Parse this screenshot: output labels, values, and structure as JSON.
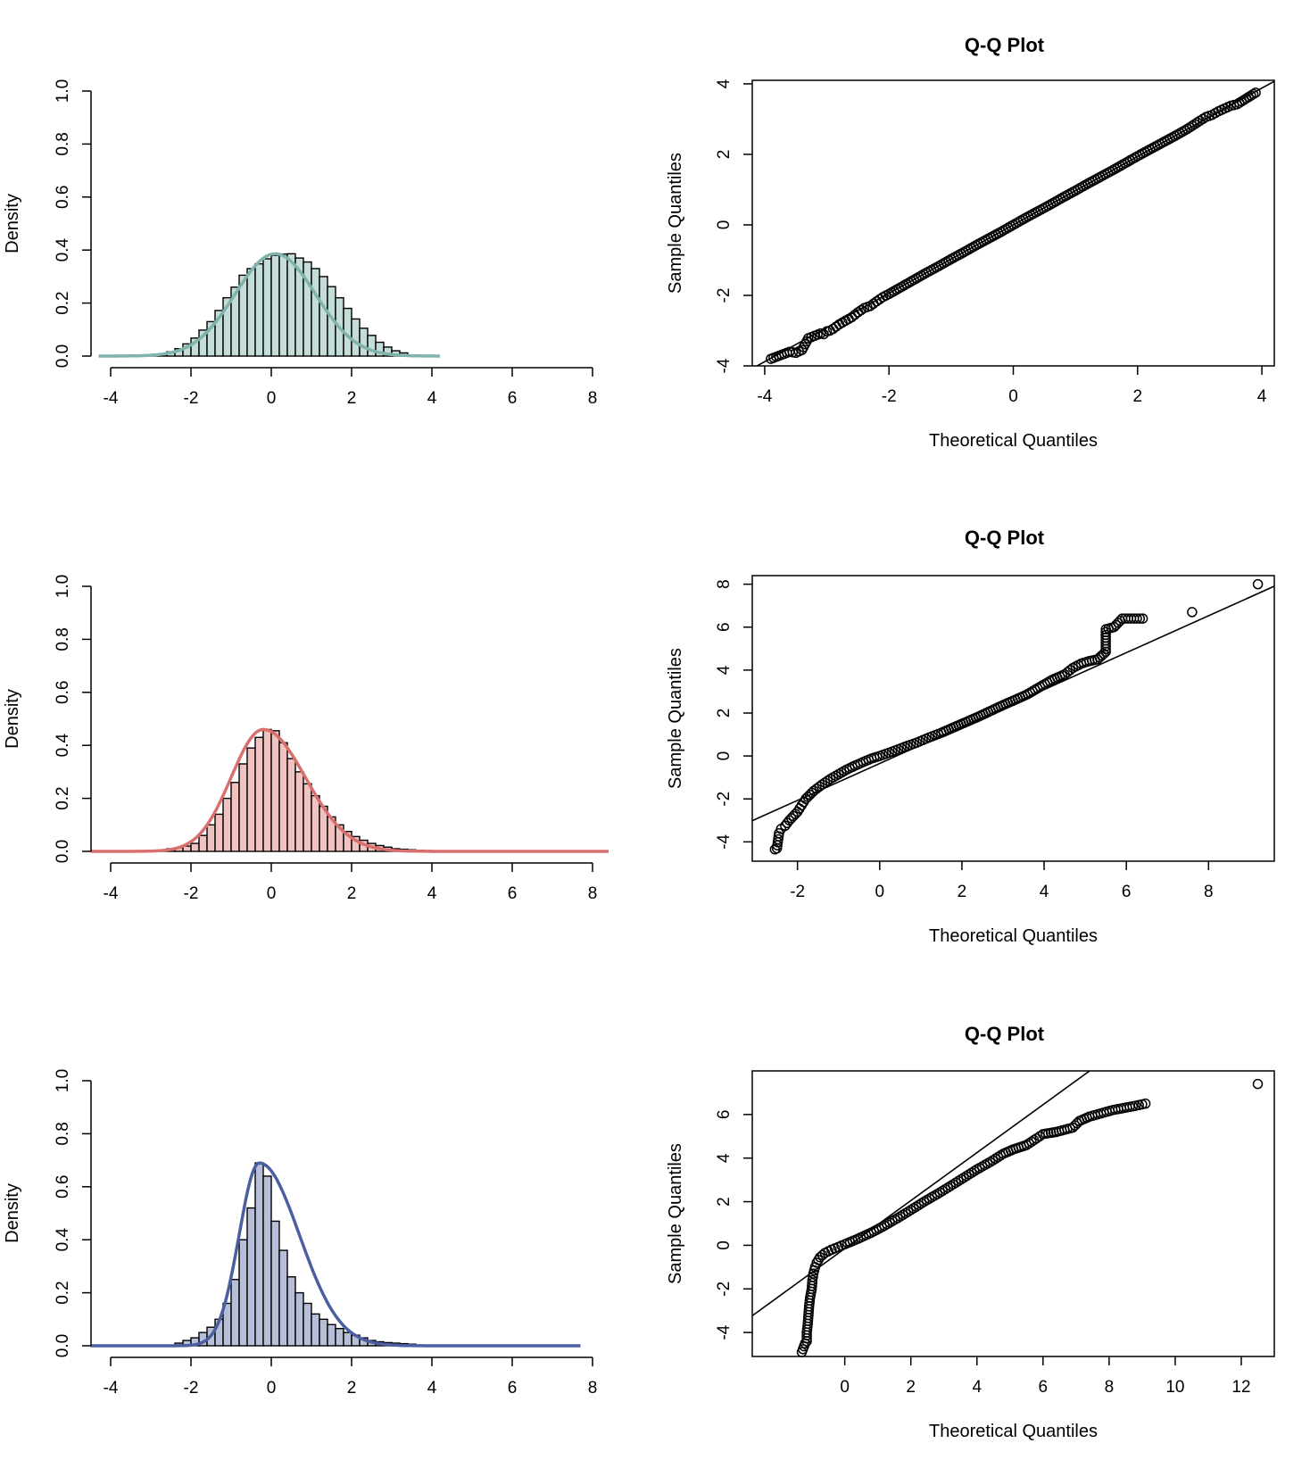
{
  "chart_data": [
    {
      "id": "hist1",
      "type": "bar",
      "title": "",
      "xlabel": "",
      "ylabel": "Density",
      "xlim": [
        -4,
        8
      ],
      "ylim": [
        0,
        1
      ],
      "xticks": [
        -4,
        -2,
        0,
        2,
        4,
        6,
        8
      ],
      "yticks": [
        0.0,
        0.2,
        0.4,
        0.6,
        0.8,
        1.0
      ],
      "bin_start": -3.0,
      "bin_width": 0.2,
      "values": [
        0.004,
        0.009,
        0.016,
        0.028,
        0.046,
        0.068,
        0.098,
        0.13,
        0.172,
        0.22,
        0.26,
        0.305,
        0.33,
        0.348,
        0.367,
        0.38,
        0.385,
        0.386,
        0.37,
        0.355,
        0.33,
        0.3,
        0.262,
        0.22,
        0.18,
        0.14,
        0.105,
        0.078,
        0.052,
        0.034,
        0.02,
        0.012
      ],
      "density_curve": {
        "color": "#7fb3ac",
        "x_min": -4.3,
        "x_max": 4.2,
        "peak": 0.386,
        "center": 0.1,
        "left_scale": 1.0,
        "right_scale": 1.0
      },
      "fill_color": "#c5ddd8"
    },
    {
      "id": "qq1",
      "type": "scatter",
      "title": "Q-Q Plot",
      "xlabel": "Theoretical Quantiles",
      "ylabel": "Sample Quantiles",
      "xlim": [
        -4.2,
        4.2
      ],
      "ylim": [
        -4,
        4.1
      ],
      "xticks": [
        -4,
        -2,
        0,
        2,
        4
      ],
      "yticks": [
        -4,
        -2,
        0,
        2,
        4
      ],
      "ref_line": {
        "slope": 0.97,
        "intercept": 0.0
      },
      "points": [
        [
          -3.9,
          -3.8
        ],
        [
          -3.6,
          -3.6
        ],
        [
          -3.5,
          -3.63
        ],
        [
          -3.4,
          -3.55
        ],
        [
          -3.3,
          -3.22
        ],
        [
          -3.2,
          -3.15
        ],
        [
          -3.1,
          -3.08
        ],
        [
          -3.05,
          -3.1
        ],
        [
          -3.0,
          -3.02
        ],
        [
          -2.95,
          -3.0
        ],
        [
          -2.9,
          -2.95
        ],
        [
          -2.8,
          -2.82
        ],
        [
          -2.7,
          -2.72
        ],
        [
          -2.6,
          -2.62
        ],
        [
          -2.5,
          -2.48
        ],
        [
          -2.4,
          -2.36
        ],
        [
          -2.3,
          -2.3
        ],
        [
          -2.2,
          -2.17
        ],
        [
          -2.1,
          -2.05
        ],
        [
          -2.0,
          -1.96
        ],
        [
          -1.8,
          -1.76
        ],
        [
          -1.6,
          -1.56
        ],
        [
          -1.4,
          -1.36
        ],
        [
          -1.2,
          -1.17
        ],
        [
          -1.0,
          -0.97
        ],
        [
          -0.8,
          -0.78
        ],
        [
          -0.6,
          -0.58
        ],
        [
          -0.4,
          -0.39
        ],
        [
          -0.2,
          -0.2
        ],
        [
          0.0,
          0.0
        ],
        [
          0.2,
          0.2
        ],
        [
          0.4,
          0.39
        ],
        [
          0.6,
          0.58
        ],
        [
          0.8,
          0.78
        ],
        [
          1.0,
          0.97
        ],
        [
          1.2,
          1.17
        ],
        [
          1.4,
          1.36
        ],
        [
          1.6,
          1.55
        ],
        [
          1.8,
          1.75
        ],
        [
          2.0,
          1.95
        ],
        [
          2.2,
          2.14
        ],
        [
          2.4,
          2.33
        ],
        [
          2.6,
          2.52
        ],
        [
          2.8,
          2.72
        ],
        [
          3.0,
          2.95
        ],
        [
          3.1,
          3.06
        ],
        [
          3.2,
          3.12
        ],
        [
          3.3,
          3.22
        ],
        [
          3.4,
          3.3
        ],
        [
          3.5,
          3.38
        ],
        [
          3.6,
          3.42
        ],
        [
          3.9,
          3.75
        ]
      ]
    },
    {
      "id": "hist2",
      "type": "bar",
      "title": "",
      "xlabel": "",
      "ylabel": "Density",
      "xlim": [
        -4,
        8
      ],
      "ylim": [
        0,
        1
      ],
      "xticks": [
        -4,
        -2,
        0,
        2,
        4,
        6,
        8
      ],
      "yticks": [
        0.0,
        0.2,
        0.4,
        0.6,
        0.8,
        1.0
      ],
      "bin_start": -2.8,
      "bin_width": 0.2,
      "values": [
        0.006,
        0.01,
        0.014,
        0.02,
        0.03,
        0.06,
        0.1,
        0.14,
        0.2,
        0.26,
        0.33,
        0.39,
        0.43,
        0.46,
        0.455,
        0.41,
        0.35,
        0.3,
        0.255,
        0.21,
        0.17,
        0.13,
        0.1,
        0.075,
        0.056,
        0.042,
        0.03,
        0.022,
        0.016,
        0.01,
        0.008,
        0.006,
        0.004,
        0.003,
        0.002,
        0.002
      ],
      "density_curve": {
        "color": "#d9706e",
        "x_min": -4.5,
        "x_max": 8.4,
        "peak": 0.46,
        "center": -0.2,
        "left_scale": 0.8,
        "right_scale": 1.05
      },
      "fill_color": "#f0c3c1"
    },
    {
      "id": "qq2",
      "type": "scatter",
      "title": "Q-Q Plot",
      "xlabel": "Theoretical Quantiles",
      "ylabel": "Sample Quantiles",
      "xlim": [
        -3.1,
        9.6
      ],
      "ylim": [
        -4.9,
        8.4
      ],
      "xticks": [
        -2,
        0,
        2,
        4,
        6,
        8
      ],
      "yticks": [
        -4,
        -2,
        0,
        2,
        4,
        6,
        8
      ],
      "ref_line": {
        "slope": 0.86,
        "intercept": -0.35
      },
      "points": [
        [
          -2.55,
          -4.35
        ],
        [
          -2.5,
          -4.3
        ],
        [
          -2.45,
          -3.6
        ],
        [
          -2.4,
          -3.4
        ],
        [
          -2.3,
          -3.25
        ],
        [
          -2.2,
          -3.0
        ],
        [
          -2.1,
          -2.8
        ],
        [
          -2.0,
          -2.6
        ],
        [
          -1.9,
          -2.3
        ],
        [
          -1.8,
          -2.0
        ],
        [
          -1.6,
          -1.62
        ],
        [
          -1.4,
          -1.33
        ],
        [
          -1.2,
          -1.07
        ],
        [
          -1.0,
          -0.85
        ],
        [
          -0.8,
          -0.63
        ],
        [
          -0.6,
          -0.45
        ],
        [
          -0.4,
          -0.28
        ],
        [
          -0.2,
          -0.12
        ],
        [
          0.0,
          0.0
        ],
        [
          0.3,
          0.2
        ],
        [
          0.6,
          0.42
        ],
        [
          0.9,
          0.62
        ],
        [
          1.2,
          0.86
        ],
        [
          1.5,
          1.08
        ],
        [
          1.8,
          1.33
        ],
        [
          2.1,
          1.58
        ],
        [
          2.4,
          1.83
        ],
        [
          2.7,
          2.1
        ],
        [
          3.0,
          2.37
        ],
        [
          3.3,
          2.62
        ],
        [
          3.6,
          2.88
        ],
        [
          3.9,
          3.22
        ],
        [
          4.2,
          3.55
        ],
        [
          4.5,
          3.8
        ],
        [
          4.7,
          4.1
        ],
        [
          4.9,
          4.3
        ],
        [
          5.1,
          4.42
        ],
        [
          5.3,
          4.5
        ],
        [
          5.5,
          4.85
        ],
        [
          5.5,
          5.9
        ],
        [
          5.7,
          6.0
        ],
        [
          5.9,
          6.4
        ],
        [
          6.4,
          6.4
        ],
        [
          7.6,
          6.7
        ],
        [
          9.2,
          8.0
        ]
      ]
    },
    {
      "id": "hist3",
      "type": "bar",
      "title": "",
      "xlabel": "",
      "ylabel": "Density",
      "xlim": [
        -4,
        8
      ],
      "ylim": [
        0,
        1
      ],
      "xticks": [
        -4,
        -2,
        0,
        2,
        4,
        6,
        8
      ],
      "yticks": [
        0.0,
        0.2,
        0.4,
        0.6,
        0.8,
        1.0
      ],
      "bin_start": -2.4,
      "bin_width": 0.2,
      "values": [
        0.01,
        0.02,
        0.03,
        0.05,
        0.07,
        0.1,
        0.16,
        0.25,
        0.4,
        0.52,
        0.69,
        0.64,
        0.47,
        0.36,
        0.26,
        0.2,
        0.16,
        0.12,
        0.1,
        0.08,
        0.065,
        0.05,
        0.04,
        0.03,
        0.02,
        0.015,
        0.012,
        0.01,
        0.008,
        0.006
      ],
      "density_curve": {
        "color": "#4b5fa0",
        "x_min": -4.5,
        "x_max": 7.7,
        "peak": 0.69,
        "center": -0.3,
        "left_scale": 0.5,
        "right_scale": 1.0
      },
      "fill_color": "#b7bed8"
    },
    {
      "id": "qq3",
      "type": "scatter",
      "title": "Q-Q Plot",
      "xlabel": "Theoretical Quantiles",
      "ylabel": "Sample Quantiles",
      "xlim": [
        -2.8,
        13.0
      ],
      "ylim": [
        -5.1,
        8.0
      ],
      "xticks": [
        0,
        2,
        4,
        6,
        8,
        10,
        12
      ],
      "yticks": [
        -4,
        -2,
        0,
        2,
        4,
        6
      ],
      "ref_line": {
        "slope": 1.1,
        "intercept": -0.15
      },
      "points": [
        [
          -1.3,
          -4.9
        ],
        [
          -1.2,
          -4.5
        ],
        [
          -1.15,
          -4.4
        ],
        [
          -1.15,
          -4.0
        ],
        [
          -1.12,
          -3.6
        ],
        [
          -1.1,
          -3.2
        ],
        [
          -1.08,
          -2.8
        ],
        [
          -1.05,
          -2.4
        ],
        [
          -1.0,
          -2.0
        ],
        [
          -0.98,
          -1.6
        ],
        [
          -0.95,
          -1.3
        ],
        [
          -0.9,
          -1.0
        ],
        [
          -0.85,
          -0.8
        ],
        [
          -0.75,
          -0.55
        ],
        [
          -0.6,
          -0.35
        ],
        [
          -0.4,
          -0.2
        ],
        [
          -0.2,
          -0.08
        ],
        [
          0.0,
          0.05
        ],
        [
          0.4,
          0.3
        ],
        [
          0.8,
          0.58
        ],
        [
          1.2,
          0.9
        ],
        [
          1.6,
          1.25
        ],
        [
          2.0,
          1.62
        ],
        [
          2.4,
          2.0
        ],
        [
          2.8,
          2.35
        ],
        [
          3.2,
          2.72
        ],
        [
          3.6,
          3.1
        ],
        [
          4.0,
          3.48
        ],
        [
          4.4,
          3.82
        ],
        [
          4.8,
          4.2
        ],
        [
          5.1,
          4.4
        ],
        [
          5.5,
          4.6
        ],
        [
          5.8,
          4.9
        ],
        [
          6.0,
          5.1
        ],
        [
          6.4,
          5.2
        ],
        [
          6.9,
          5.4
        ],
        [
          7.1,
          5.7
        ],
        [
          7.4,
          5.9
        ],
        [
          8.1,
          6.2
        ],
        [
          8.8,
          6.4
        ],
        [
          9.1,
          6.5
        ],
        [
          12.5,
          7.4
        ]
      ]
    }
  ]
}
